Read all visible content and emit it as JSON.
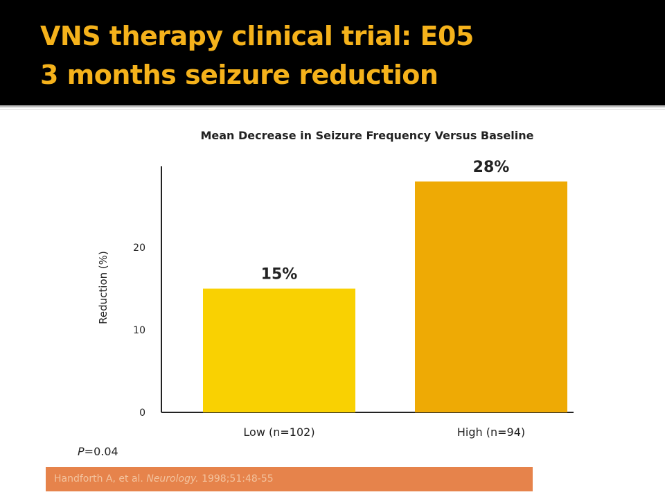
{
  "slide": {
    "title_line1": "VNS therapy clinical trial: E05",
    "title_line2": "3 months seizure reduction",
    "p_label": "P",
    "p_value": "=0.04",
    "citation_authors": "Handforth A, et al.",
    "citation_journal": "Neurology.",
    "citation_rest": "1998;51:48-55"
  },
  "colors": {
    "title_text": "#f5b21b",
    "low_bar": "#f9d102",
    "high_bar": "#eeaa05",
    "citation_bg": "#e6834b"
  },
  "chart_data": {
    "type": "bar",
    "title": "Mean Decrease in Seizure Frequency Versus Baseline",
    "ylabel": "Reduction (%)",
    "xlabel": "",
    "categories": [
      "Low (n=102)",
      "High (n=94)"
    ],
    "values": [
      15,
      28
    ],
    "data_labels": [
      "15%",
      "28%"
    ],
    "yticks": [
      0,
      10,
      20
    ],
    "ylim": [
      0,
      30
    ],
    "grid": false,
    "legend": "none"
  }
}
